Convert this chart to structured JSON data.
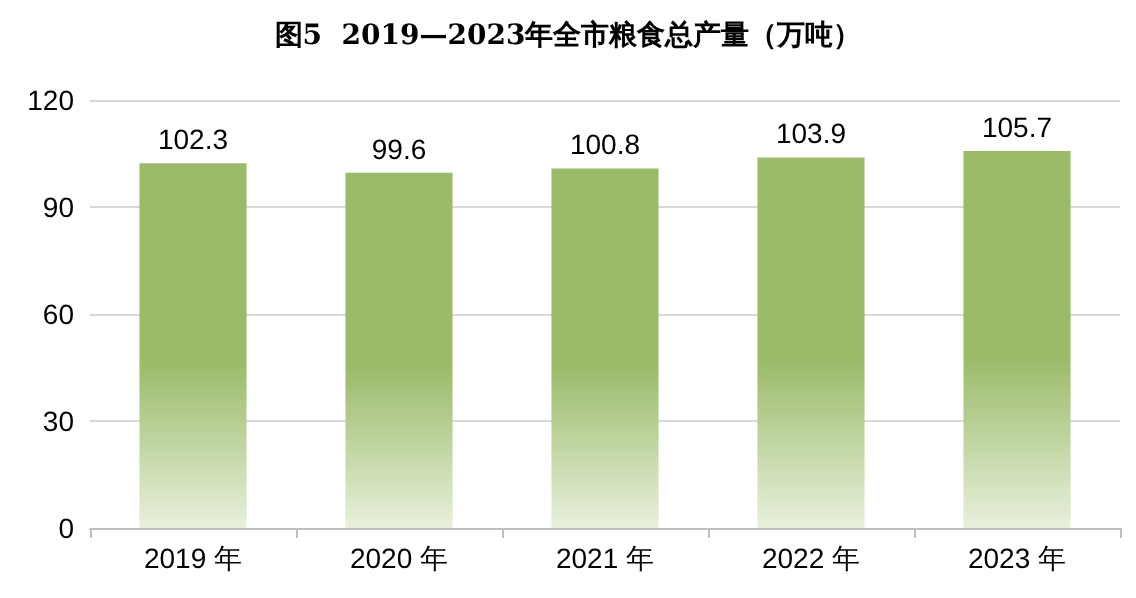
{
  "chart_data": {
    "type": "bar",
    "title": "图5  2019—2023年全市粮食总产量（万吨）",
    "categories": [
      "2019 年",
      "2020 年",
      "2021 年",
      "2022 年",
      "2023 年"
    ],
    "values": [
      102.3,
      99.6,
      100.8,
      103.9,
      105.7
    ],
    "color": "#9bbb6a",
    "ylim": [
      0,
      120
    ],
    "yticks": [
      0,
      30,
      60,
      90,
      120
    ],
    "grid": "y",
    "data_labels": true
  }
}
